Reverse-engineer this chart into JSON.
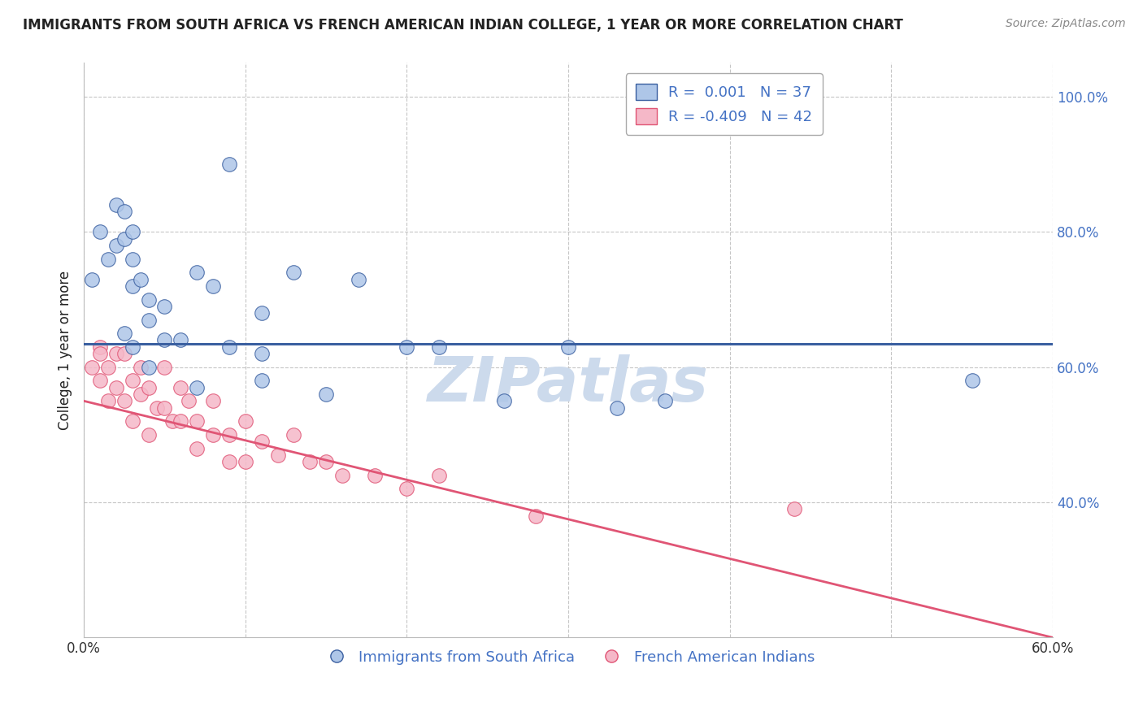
{
  "title": "IMMIGRANTS FROM SOUTH AFRICA VS FRENCH AMERICAN INDIAN COLLEGE, 1 YEAR OR MORE CORRELATION CHART",
  "source": "Source: ZipAtlas.com",
  "ylabel": "College, 1 year or more",
  "xlim": [
    0.0,
    0.6
  ],
  "ylim": [
    0.2,
    1.05
  ],
  "xticks": [
    0.0,
    0.1,
    0.2,
    0.3,
    0.4,
    0.5,
    0.6
  ],
  "xticklabels": [
    "0.0%",
    "",
    "",
    "",
    "",
    "",
    "60.0%"
  ],
  "yticks": [
    0.4,
    0.6,
    0.8,
    1.0
  ],
  "yticklabels": [
    "40.0%",
    "60.0%",
    "80.0%",
    "100.0%"
  ],
  "blue_color": "#aec6e8",
  "pink_color": "#f5b8c8",
  "blue_line_color": "#3a5fa0",
  "pink_line_color": "#e05575",
  "R_blue": 0.001,
  "N_blue": 37,
  "R_pink": -0.409,
  "N_pink": 42,
  "legend_label_blue": "Immigrants from South Africa",
  "legend_label_pink": "French American Indians",
  "blue_trend_y": 0.635,
  "blue_dots_x": [
    0.005,
    0.01,
    0.015,
    0.02,
    0.02,
    0.025,
    0.025,
    0.03,
    0.03,
    0.03,
    0.035,
    0.04,
    0.04,
    0.05,
    0.05,
    0.07,
    0.08,
    0.09,
    0.11,
    0.11,
    0.13,
    0.17,
    0.2,
    0.22,
    0.3,
    0.33,
    0.36,
    0.55,
    0.025,
    0.03,
    0.04,
    0.06,
    0.07,
    0.09,
    0.11,
    0.15,
    0.26
  ],
  "blue_dots_y": [
    0.73,
    0.8,
    0.76,
    0.84,
    0.78,
    0.83,
    0.79,
    0.8,
    0.76,
    0.72,
    0.73,
    0.7,
    0.67,
    0.69,
    0.64,
    0.74,
    0.72,
    0.9,
    0.68,
    0.62,
    0.74,
    0.73,
    0.63,
    0.63,
    0.63,
    0.54,
    0.55,
    0.58,
    0.65,
    0.63,
    0.6,
    0.64,
    0.57,
    0.63,
    0.58,
    0.56,
    0.55
  ],
  "pink_dots_x": [
    0.005,
    0.01,
    0.01,
    0.015,
    0.015,
    0.02,
    0.02,
    0.025,
    0.025,
    0.03,
    0.03,
    0.035,
    0.035,
    0.04,
    0.04,
    0.045,
    0.05,
    0.05,
    0.055,
    0.06,
    0.06,
    0.065,
    0.07,
    0.07,
    0.08,
    0.08,
    0.09,
    0.09,
    0.1,
    0.1,
    0.11,
    0.12,
    0.13,
    0.14,
    0.15,
    0.16,
    0.18,
    0.2,
    0.22,
    0.28,
    0.44,
    0.01
  ],
  "pink_dots_y": [
    0.6,
    0.63,
    0.58,
    0.6,
    0.55,
    0.62,
    0.57,
    0.62,
    0.55,
    0.58,
    0.52,
    0.6,
    0.56,
    0.57,
    0.5,
    0.54,
    0.6,
    0.54,
    0.52,
    0.57,
    0.52,
    0.55,
    0.52,
    0.48,
    0.55,
    0.5,
    0.5,
    0.46,
    0.52,
    0.46,
    0.49,
    0.47,
    0.5,
    0.46,
    0.46,
    0.44,
    0.44,
    0.42,
    0.44,
    0.38,
    0.39,
    0.62
  ],
  "pink_trend_x0": 0.0,
  "pink_trend_y0": 0.55,
  "pink_trend_x1": 0.6,
  "pink_trend_y1": 0.2,
  "background_color": "#ffffff",
  "grid_color": "#c0c0c0",
  "watermark_text": "ZIPatlas",
  "watermark_color": "#ccdaec",
  "watermark_fontsize": 55,
  "title_color": "#222222",
  "source_color": "#888888",
  "tick_color_y": "#4472c4",
  "tick_color_x": "#333333",
  "legend_text_color": "#4472c4"
}
